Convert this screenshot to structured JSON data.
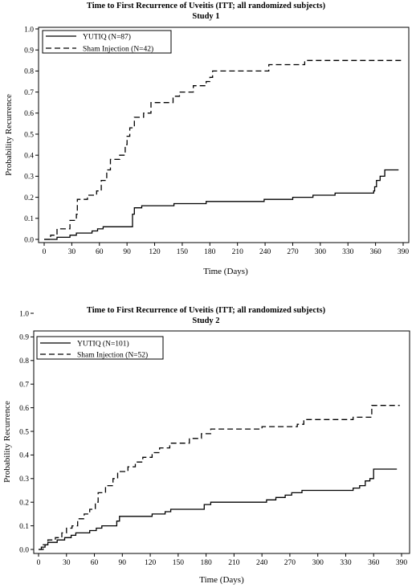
{
  "chart_data": [
    {
      "type": "line",
      "subtype": "kaplan-meier step",
      "title": "Time to First Recurrence of Uveitis (ITT; all randomized subjects)",
      "subtitle": "Study 1",
      "xlabel": "Time (Days)",
      "ylabel": "Probability Recurrence",
      "xlim": [
        0,
        390
      ],
      "ylim": [
        0,
        1.0
      ],
      "xticks": [
        "0",
        "30",
        "60",
        "90",
        "120",
        "150",
        "180",
        "210",
        "240",
        "270",
        "300",
        "330",
        "360",
        "390"
      ],
      "yticks": [
        "0.0",
        "0.1",
        "0.2",
        "0.3",
        "0.4",
        "0.5",
        "0.6",
        "0.7",
        "0.8",
        "0.9",
        "1.0"
      ],
      "legend_position": "top-left",
      "series": [
        {
          "name": "YUTIQ (N=87)",
          "style": "solid",
          "points": [
            [
              0,
              0
            ],
            [
              14,
              0.01
            ],
            [
              28,
              0.02
            ],
            [
              35,
              0.03
            ],
            [
              52,
              0.04
            ],
            [
              58,
              0.05
            ],
            [
              64,
              0.06
            ],
            [
              96,
              0.12
            ],
            [
              98,
              0.15
            ],
            [
              106,
              0.16
            ],
            [
              141,
              0.17
            ],
            [
              176,
              0.18
            ],
            [
              239,
              0.19
            ],
            [
              270,
              0.2
            ],
            [
              292,
              0.21
            ],
            [
              316,
              0.22
            ],
            [
              358,
              0.23
            ],
            [
              359,
              0.25
            ],
            [
              361,
              0.28
            ],
            [
              365,
              0.3
            ],
            [
              370,
              0.33
            ],
            [
              385,
              0.33
            ]
          ]
        },
        {
          "name": "Sham Injection (N=42)",
          "style": "dashed",
          "points": [
            [
              0,
              0
            ],
            [
              7,
              0.02
            ],
            [
              14,
              0.05
            ],
            [
              28,
              0.09
            ],
            [
              35,
              0.12
            ],
            [
              36,
              0.19
            ],
            [
              47,
              0.21
            ],
            [
              57,
              0.23
            ],
            [
              62,
              0.28
            ],
            [
              68,
              0.33
            ],
            [
              72,
              0.38
            ],
            [
              82,
              0.4
            ],
            [
              88,
              0.45
            ],
            [
              90,
              0.49
            ],
            [
              93,
              0.53
            ],
            [
              98,
              0.58
            ],
            [
              108,
              0.6
            ],
            [
              116,
              0.65
            ],
            [
              140,
              0.68
            ],
            [
              147,
              0.7
            ],
            [
              162,
              0.73
            ],
            [
              176,
              0.75
            ],
            [
              180,
              0.77
            ],
            [
              183,
              0.8
            ],
            [
              244,
              0.83
            ],
            [
              283,
              0.85
            ],
            [
              388,
              0.85
            ]
          ]
        }
      ]
    },
    {
      "type": "line",
      "subtype": "kaplan-meier step",
      "title": "Time to First Recurrence of Uveitis (ITT; all randomized subjects)",
      "subtitle": "Study 2",
      "xlabel": "Time (Days)",
      "ylabel": "Probability Recurrence",
      "xlim": [
        0,
        390
      ],
      "ylim": [
        0,
        1.0
      ],
      "xticks": [
        "0",
        "30",
        "60",
        "90",
        "120",
        "150",
        "180",
        "210",
        "240",
        "270",
        "300",
        "330",
        "360",
        "390"
      ],
      "yticks": [
        "0.0",
        "0.1",
        "0.2",
        "0.3",
        "0.4",
        "0.5",
        "0.6",
        "0.7",
        "0.8",
        "0.9",
        "1.0"
      ],
      "legend_position": "top-left",
      "series": [
        {
          "name": "YUTIQ (N=101)",
          "style": "solid",
          "points": [
            [
              0,
              0
            ],
            [
              3,
              0.01
            ],
            [
              7,
              0.02
            ],
            [
              10,
              0.03
            ],
            [
              20,
              0.04
            ],
            [
              28,
              0.05
            ],
            [
              35,
              0.06
            ],
            [
              40,
              0.07
            ],
            [
              55,
              0.08
            ],
            [
              62,
              0.09
            ],
            [
              68,
              0.1
            ],
            [
              84,
              0.12
            ],
            [
              87,
              0.14
            ],
            [
              122,
              0.15
            ],
            [
              136,
              0.16
            ],
            [
              142,
              0.17
            ],
            [
              178,
              0.19
            ],
            [
              185,
              0.2
            ],
            [
              245,
              0.21
            ],
            [
              255,
              0.22
            ],
            [
              265,
              0.23
            ],
            [
              272,
              0.24
            ],
            [
              283,
              0.25
            ],
            [
              308,
              0.25
            ],
            [
              338,
              0.26
            ],
            [
              345,
              0.27
            ],
            [
              351,
              0.29
            ],
            [
              356,
              0.3
            ],
            [
              360,
              0.34
            ],
            [
              385,
              0.34
            ]
          ]
        },
        {
          "name": "Sham Injection (N=52)",
          "style": "dashed",
          "points": [
            [
              0,
              0
            ],
            [
              5,
              0.02
            ],
            [
              10,
              0.04
            ],
            [
              18,
              0.05
            ],
            [
              25,
              0.07
            ],
            [
              30,
              0.09
            ],
            [
              36,
              0.1
            ],
            [
              42,
              0.13
            ],
            [
              49,
              0.15
            ],
            [
              55,
              0.17
            ],
            [
              61,
              0.2
            ],
            [
              64,
              0.24
            ],
            [
              72,
              0.27
            ],
            [
              80,
              0.3
            ],
            [
              85,
              0.33
            ],
            [
              96,
              0.35
            ],
            [
              104,
              0.37
            ],
            [
              112,
              0.39
            ],
            [
              122,
              0.41
            ],
            [
              130,
              0.43
            ],
            [
              141,
              0.45
            ],
            [
              162,
              0.47
            ],
            [
              175,
              0.49
            ],
            [
              185,
              0.51
            ],
            [
              240,
              0.52
            ],
            [
              278,
              0.53
            ],
            [
              285,
              0.55
            ],
            [
              338,
              0.56
            ],
            [
              358,
              0.61
            ],
            [
              388,
              0.61
            ]
          ]
        }
      ]
    }
  ]
}
